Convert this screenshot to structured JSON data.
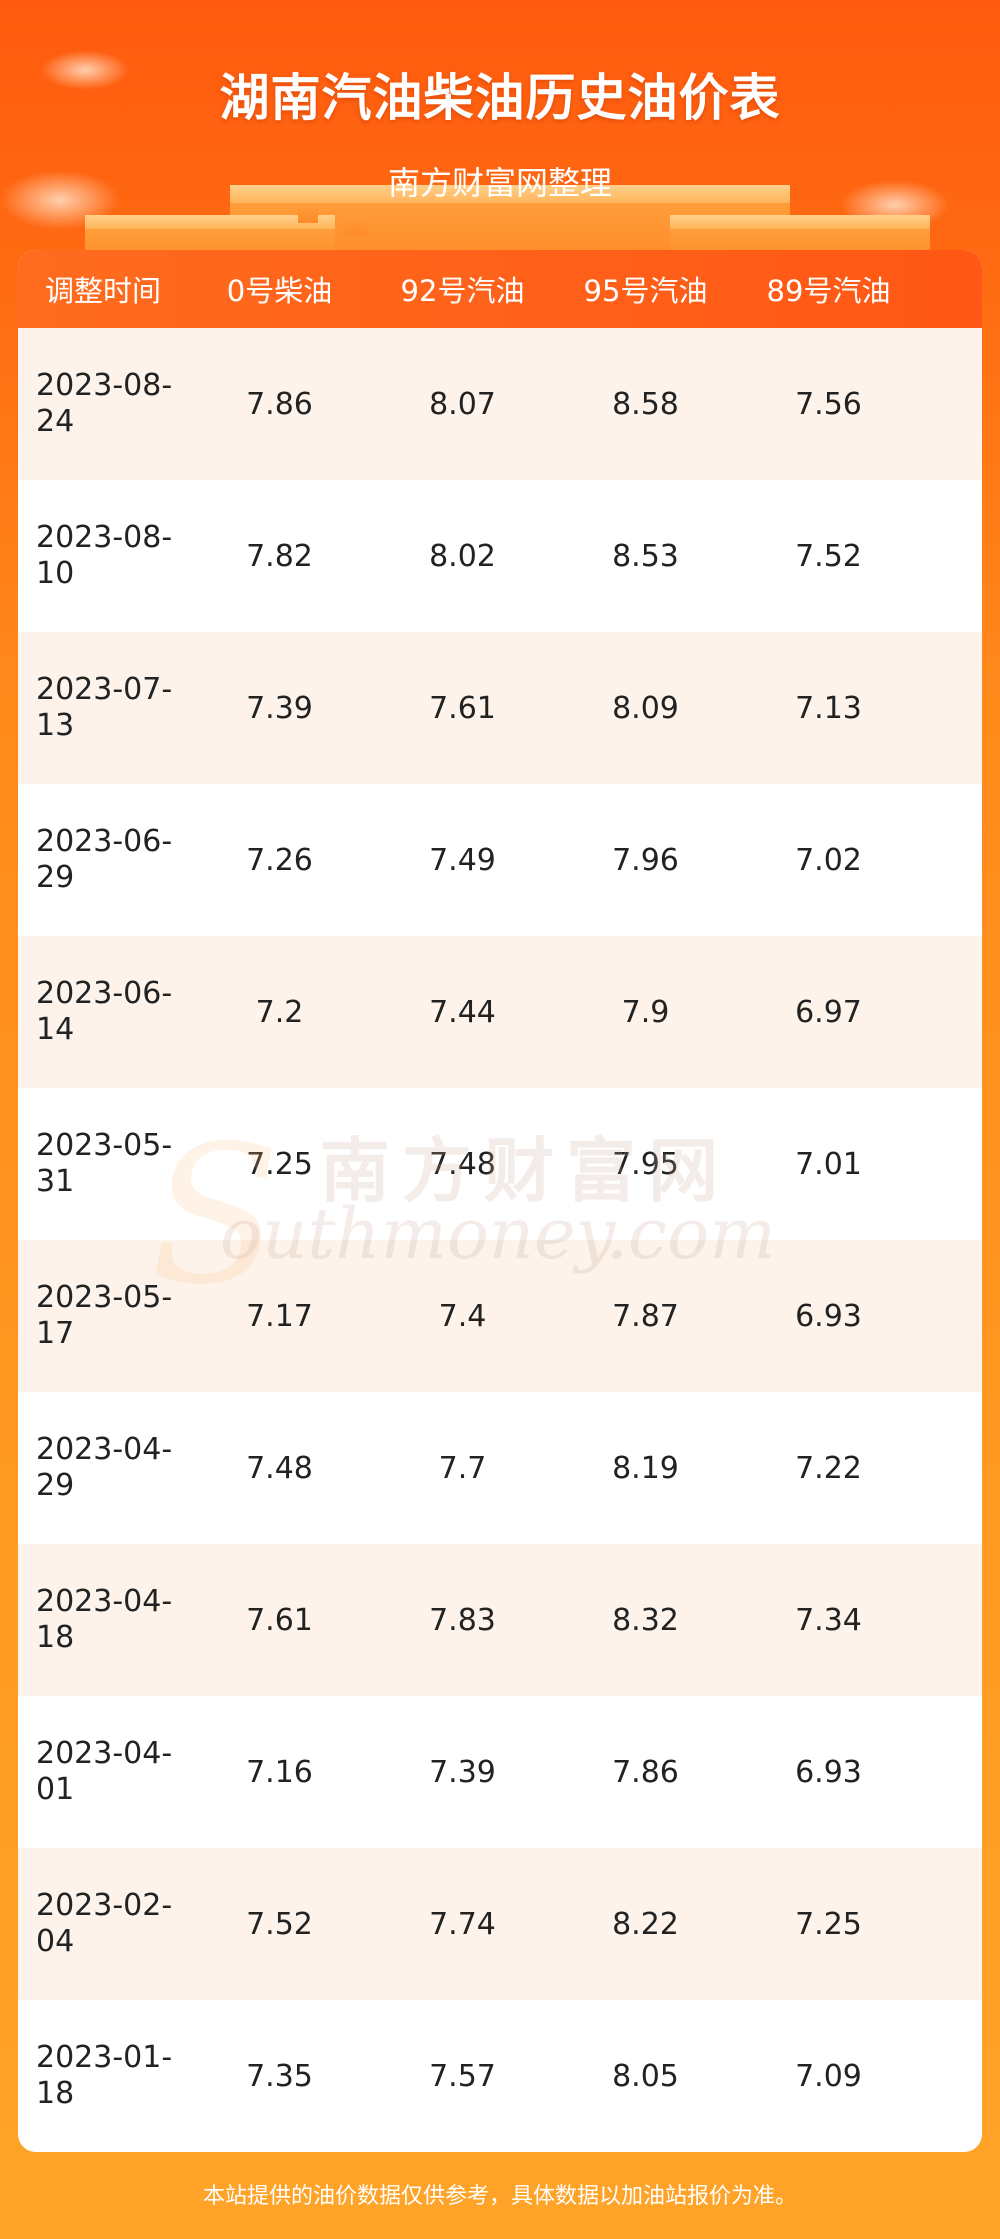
{
  "header": {
    "title": "湖南汽油柴油历史油价表",
    "subtitle": "南方财富网整理"
  },
  "table": {
    "columns": [
      "调整时间",
      "0号柴油",
      "92号汽油",
      "95号汽油",
      "89号汽油"
    ],
    "rows": [
      {
        "date_line1": "2023-08-",
        "date_line2": "24",
        "diesel0": "7.86",
        "gas92": "8.07",
        "gas95": "8.58",
        "gas89": "7.56"
      },
      {
        "date_line1": "2023-08-",
        "date_line2": "10",
        "diesel0": "7.82",
        "gas92": "8.02",
        "gas95": "8.53",
        "gas89": "7.52"
      },
      {
        "date_line1": "2023-07-",
        "date_line2": "13",
        "diesel0": "7.39",
        "gas92": "7.61",
        "gas95": "8.09",
        "gas89": "7.13"
      },
      {
        "date_line1": "2023-06-",
        "date_line2": "29",
        "diesel0": "7.26",
        "gas92": "7.49",
        "gas95": "7.96",
        "gas89": "7.02"
      },
      {
        "date_line1": "2023-06-",
        "date_line2": "14",
        "diesel0": "7.2",
        "gas92": "7.44",
        "gas95": "7.9",
        "gas89": "6.97"
      },
      {
        "date_line1": "2023-05-",
        "date_line2": "31",
        "diesel0": "7.25",
        "gas92": "7.48",
        "gas95": "7.95",
        "gas89": "7.01"
      },
      {
        "date_line1": "2023-05-",
        "date_line2": "17",
        "diesel0": "7.17",
        "gas92": "7.4",
        "gas95": "7.87",
        "gas89": "6.93"
      },
      {
        "date_line1": "2023-04-",
        "date_line2": "29",
        "diesel0": "7.48",
        "gas92": "7.7",
        "gas95": "8.19",
        "gas89": "7.22"
      },
      {
        "date_line1": "2023-04-",
        "date_line2": "18",
        "diesel0": "7.61",
        "gas92": "7.83",
        "gas95": "8.32",
        "gas89": "7.34"
      },
      {
        "date_line1": "2023-04-",
        "date_line2": "01",
        "diesel0": "7.16",
        "gas92": "7.39",
        "gas95": "7.86",
        "gas89": "6.93"
      },
      {
        "date_line1": "2023-02-",
        "date_line2": "04",
        "diesel0": "7.52",
        "gas92": "7.74",
        "gas95": "8.22",
        "gas89": "7.25"
      },
      {
        "date_line1": "2023-01-",
        "date_line2": "18",
        "diesel0": "7.35",
        "gas92": "7.57",
        "gas95": "8.05",
        "gas89": "7.09"
      }
    ]
  },
  "watermark": {
    "cn": "南方财富网",
    "en": "outhmoney.com",
    "letter": "S"
  },
  "footer": {
    "note": "本站提供的油价数据仅供参考，具体数据以加油站报价为准。"
  },
  "colors": {
    "accent": "#ff5a0e",
    "header_row": "#ff6c1e",
    "odd_row": "#fdf3ea",
    "even_row": "#ffffff"
  }
}
